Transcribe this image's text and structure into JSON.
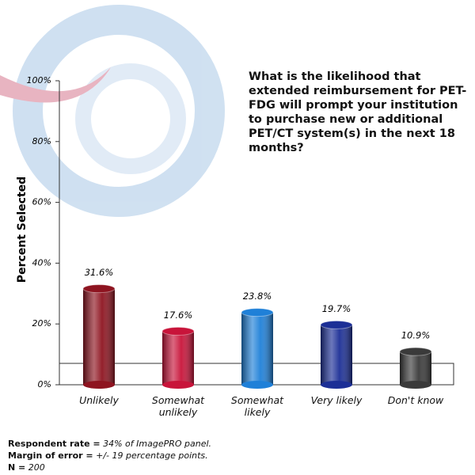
{
  "chart_data": {
    "type": "bar",
    "title": "What is the likelihood that extended reimbursement for PET-FDG will prompt your institution to purchase new or additional PET/CT system(s) in the next 18 months?",
    "y_label": "Percent Selected",
    "categories": [
      "Unlikely",
      "Somewhat unlikely",
      "Somewhat likely",
      "Very likely",
      "Don't know"
    ],
    "values": [
      31.6,
      17.6,
      23.8,
      19.7,
      10.9
    ],
    "value_labels": [
      "31.6%",
      "17.6%",
      "23.8%",
      "19.7%",
      "10.9%"
    ],
    "colors": [
      "#8e1420",
      "#c8143a",
      "#1f80d8",
      "#1c2f96",
      "#3a3a3a"
    ],
    "ylim": [
      0,
      100
    ],
    "yticks": [
      {
        "value": 0,
        "label": "0%"
      },
      {
        "value": 20,
        "label": "20%"
      },
      {
        "value": 40,
        "label": "40%"
      },
      {
        "value": 60,
        "label": "60%"
      },
      {
        "value": 80,
        "label": "80%"
      },
      {
        "value": 100,
        "label": "100%"
      }
    ],
    "notes": [
      {
        "label": "Respondent rate =",
        "text": "34% of ImagePRO panel."
      },
      {
        "label": "Margin of error =",
        "text": "+/- 19 percentage points."
      },
      {
        "label": "N =",
        "text": "200"
      }
    ]
  }
}
